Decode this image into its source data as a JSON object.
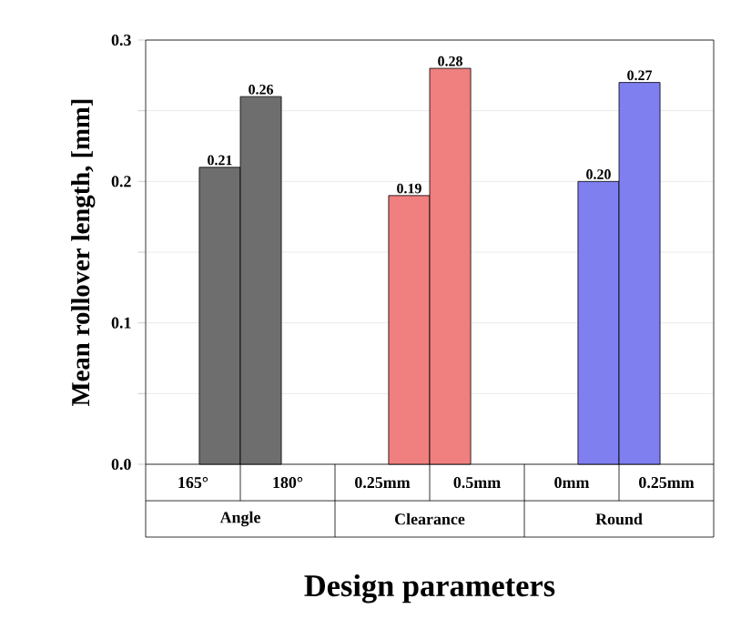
{
  "chart_data": {
    "type": "bar",
    "xlabel": "Design parameters",
    "ylabel": "Mean rollover length, [mm]",
    "categories": [
      "165°",
      "180°",
      "0.25mm",
      "0.5mm",
      "0mm",
      "0.25mm"
    ],
    "series": [
      {
        "name": "Angle",
        "color": "#6e6e6e",
        "values": [
          0.21,
          0.26,
          null,
          null,
          null,
          null
        ],
        "value_labels": [
          "0.21",
          "0.26",
          null,
          null,
          null,
          null
        ]
      },
      {
        "name": "Clearance",
        "color": "#f07f7f",
        "values": [
          null,
          null,
          0.19,
          0.28,
          null,
          null
        ],
        "value_labels": [
          null,
          null,
          "0.19",
          "0.28",
          null,
          null
        ]
      },
      {
        "name": "Round",
        "color": "#7f7ff0",
        "values": [
          null,
          null,
          null,
          null,
          0.2,
          0.27
        ],
        "value_labels": [
          null,
          null,
          null,
          null,
          "0.20",
          "0.27"
        ]
      }
    ],
    "ylim": [
      0,
      0.3
    ],
    "yticks": [
      {
        "value": 0,
        "label": "0.0"
      },
      {
        "value": 0.05,
        "label": null
      },
      0.1,
      {
        "value": 0.15,
        "label": null
      },
      0.2,
      {
        "value": 0.25,
        "label": null
      },
      0.3
    ],
    "grid": "y",
    "legend": "bottom"
  }
}
